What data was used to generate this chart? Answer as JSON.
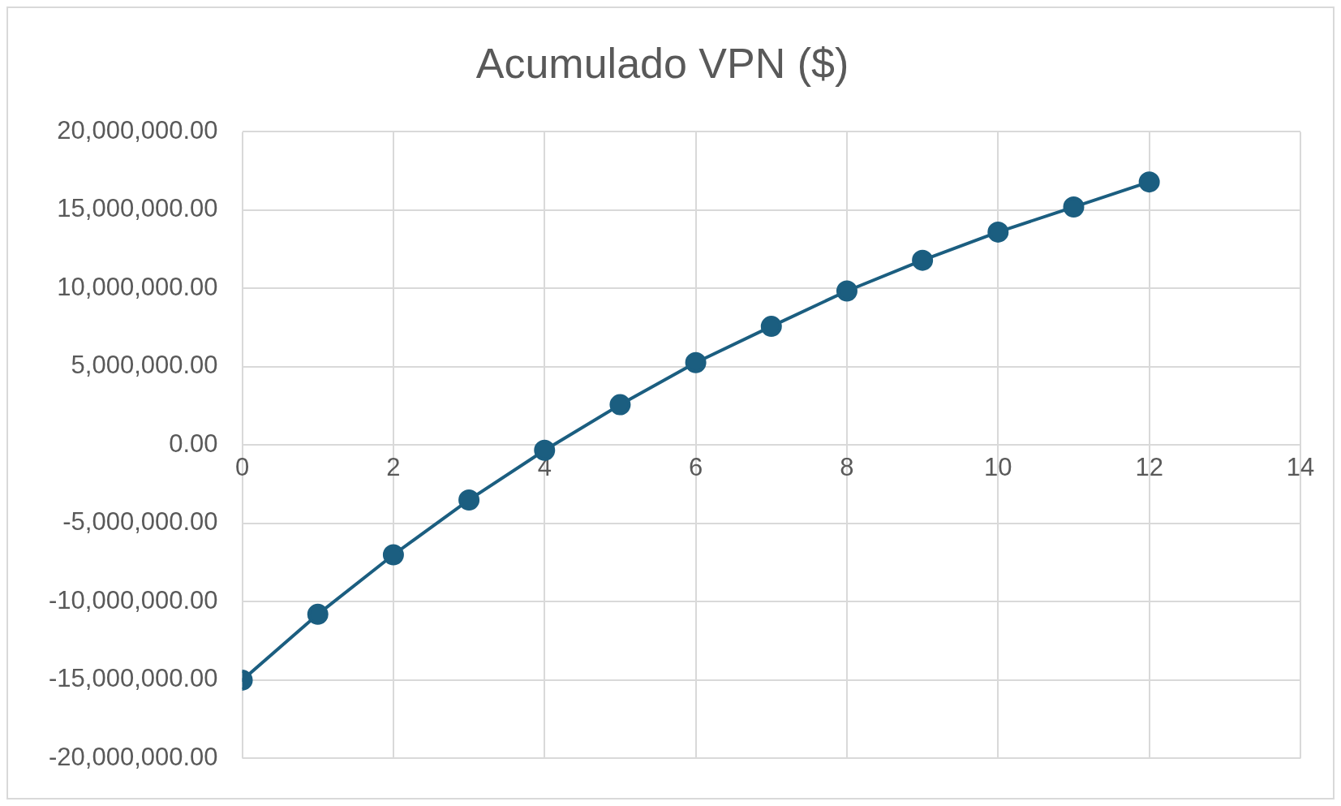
{
  "chart_data": {
    "type": "line",
    "title": "Acumulado VPN ($)",
    "x": [
      0,
      1,
      2,
      3,
      4,
      5,
      6,
      7,
      8,
      9,
      10,
      11,
      12
    ],
    "series": [
      {
        "color": "#1b5e80",
        "values": [
          -15000000,
          -10800000,
          -7000000,
          -3500000,
          -330000,
          2580000,
          5270000,
          7580000,
          9840000,
          11800000,
          13600000,
          15200000,
          16800000
        ]
      }
    ],
    "xlim": [
      0,
      14
    ],
    "xticks": [
      0,
      2,
      4,
      6,
      8,
      10,
      12,
      14
    ],
    "ylim": [
      -20000000,
      20000000
    ],
    "yticks": [
      {
        "value": -20000000,
        "label": "-20,000,000.00"
      },
      {
        "value": -15000000,
        "label": "-15,000,000.00"
      },
      {
        "value": -10000000,
        "label": "-10,000,000.00"
      },
      {
        "value": -5000000,
        "label": "-5,000,000.00"
      },
      {
        "value": 0,
        "label": "0.00"
      },
      {
        "value": 5000000,
        "label": "5,000,000.00"
      },
      {
        "value": 10000000,
        "label": "10,000,000.00"
      },
      {
        "value": 15000000,
        "label": "15,000,000.00"
      },
      {
        "value": 20000000,
        "label": "20,000,000.00"
      }
    ],
    "grid": true,
    "marker": "circle",
    "line_style": "solid"
  }
}
